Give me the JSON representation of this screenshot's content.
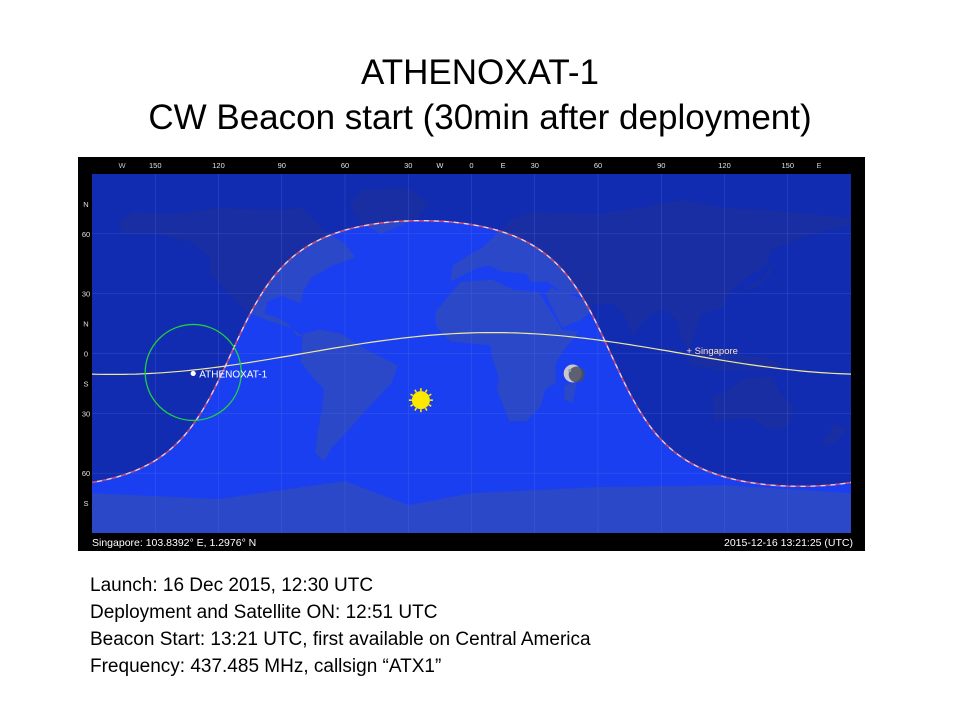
{
  "title": {
    "line1": "ATHENOXAT-1",
    "line2": "CW Beacon start (30min after deployment)"
  },
  "map": {
    "top_axis": {
      "hemisphere_w": "W",
      "hemisphere_e": "E",
      "labels": [
        {
          "text": "150",
          "lon": -150
        },
        {
          "text": "120",
          "lon": -120
        },
        {
          "text": "90",
          "lon": -90
        },
        {
          "text": "60",
          "lon": -60
        },
        {
          "text": "30",
          "lon": -30
        },
        {
          "text": "W",
          "lon": -15
        },
        {
          "text": "0",
          "lon": 0
        },
        {
          "text": "E",
          "lon": 15
        },
        {
          "text": "30",
          "lon": 30
        },
        {
          "text": "60",
          "lon": 60
        },
        {
          "text": "90",
          "lon": 90
        },
        {
          "text": "120",
          "lon": 120
        },
        {
          "text": "150",
          "lon": 150
        }
      ]
    },
    "left_axis": {
      "labels": [
        {
          "text": "N",
          "lat": 75
        },
        {
          "text": "60",
          "lat": 60
        },
        {
          "text": "30",
          "lat": 30
        },
        {
          "text": "N",
          "lat": 15
        },
        {
          "text": "0",
          "lat": 0
        },
        {
          "text": "S",
          "lat": -15
        },
        {
          "text": "30",
          "lat": -30
        },
        {
          "text": "60",
          "lat": -60
        },
        {
          "text": "S",
          "lat": -75
        }
      ]
    },
    "satellite": {
      "label": "ATHENOXAT-1",
      "lon": -132,
      "lat": -10
    },
    "ground_station": {
      "label": "+ Singapore",
      "lon": 103.8392,
      "lat": 1.2976
    },
    "sun": {
      "lon": -24,
      "lat": -23.4
    },
    "moon": {
      "lon": 48,
      "lat": -10
    },
    "status_left": "Singapore: 103.8392° E, 1.2976° N",
    "status_right": "2015-12-16 13:21:25 (UTC)",
    "colors": {
      "ocean_day": "#1a3ff0",
      "ocean_night": "#0d1f8a",
      "land_day": "#2a48c8",
      "land_night": "#1a2a7a",
      "terminator": "#f0d0e0",
      "ground_track": "#f0e8a0",
      "footprint": "#22cc44",
      "sun": "#ffe800"
    }
  },
  "info": {
    "launch": "Launch: 16 Dec 2015, 12:30 UTC",
    "deployment": "Deployment and Satellite ON: 12:51 UTC",
    "beacon": "Beacon Start: 13:21 UTC, first available on Central America",
    "frequency": "Frequency: 437.485 MHz, callsign “ATX1”"
  }
}
